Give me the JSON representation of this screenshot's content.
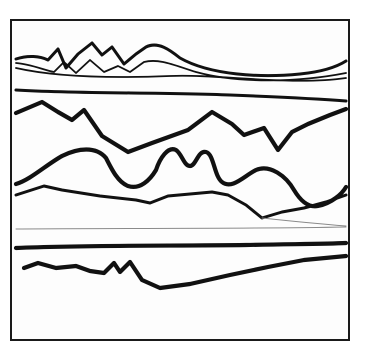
{
  "artwork": {
    "type": "abstract-line-drawing",
    "frame": "square-border",
    "ink_color": "#111111",
    "background_color": "#ffffff"
  }
}
